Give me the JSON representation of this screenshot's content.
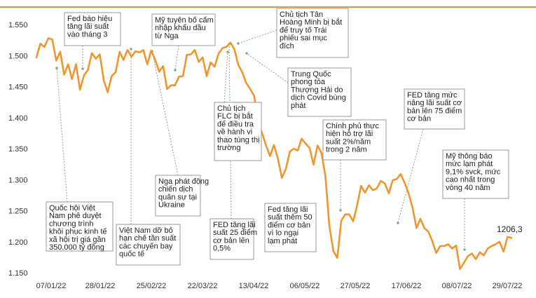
{
  "chart_data": {
    "type": "line",
    "title": "",
    "xlabel": "",
    "ylabel": "",
    "ylim": [
      1150,
      1550
    ],
    "y_ticks": [
      "1.150",
      "1.200",
      "1.250",
      "1.300",
      "1.350",
      "1.400",
      "1.450",
      "1.500",
      "1.550"
    ],
    "x_ticks": [
      "07/01/22",
      "28/01/22",
      "25/02/22",
      "22/03/22",
      "13/04/22",
      "06/05/22",
      "27/05/22",
      "17/06/22",
      "08/07/22",
      "29/07/22"
    ],
    "grid": false,
    "accent_color": "#f0962e",
    "top_rule_color": "#f0962e",
    "last_value_label": "1206,3",
    "series": [
      {
        "values": [
          1497,
          1519,
          1514,
          1528,
          1526,
          1492,
          1506,
          1469,
          1486,
          1462,
          1486,
          1445,
          1468,
          1477,
          1504,
          1495,
          1502,
          1460,
          1441,
          1467,
          1473,
          1506,
          1493,
          1509,
          1498,
          1507,
          1505,
          1509,
          1486,
          1508,
          1493,
          1474,
          1483,
          1446,
          1452,
          1452,
          1466,
          1467,
          1501,
          1502,
          1509,
          1490,
          1497,
          1467,
          1489,
          1482,
          1503,
          1512,
          1514,
          1521,
          1510,
          1485,
          1473,
          1456,
          1446,
          1435,
          1391,
          1375,
          1355,
          1338,
          1356,
          1334,
          1303,
          1317,
          1345,
          1350,
          1347,
          1366,
          1358,
          1351,
          1324,
          1355,
          1343,
          1306,
          1225,
          1185,
          1174,
          1234,
          1244,
          1244,
          1233,
          1258,
          1290,
          1279,
          1291,
          1283,
          1286,
          1298,
          1294,
          1278,
          1299,
          1301,
          1309,
          1295,
          1278,
          1255,
          1222,
          1237,
          1222,
          1216,
          1201,
          1182,
          1193,
          1193,
          1196,
          1189,
          1194,
          1156,
          1166,
          1177,
          1181,
          1172,
          1183,
          1178,
          1189,
          1193,
          1196,
          1200,
          1184,
          1208,
          1206
        ]
      }
    ],
    "annotations": [
      {
        "lines": [
          "Quốc hội Việt",
          "Nam phê duyệt",
          "chương trình",
          "khôi phục kinh tế",
          "xã hội trị giá gần",
          "350.000 tỷ đồng"
        ]
      },
      {
        "lines": [
          "Fed báo hiệu",
          "tăng lãi suất",
          "vào tháng 3"
        ]
      },
      {
        "lines": [
          "Việt Nam dỡ bỏ",
          "hạn chế tần suất",
          "các chuyến bay",
          "quốc tế"
        ]
      },
      {
        "lines": [
          "Mỹ tuyên bố cấm",
          "nhập khẩu dầu",
          "từ Nga"
        ]
      },
      {
        "lines": [
          "Nga phát động",
          "chiến dịch",
          "quân sự tại",
          "Ukraine"
        ]
      },
      {
        "lines": [
          "FED tăng lãi",
          "suất 25 điểm",
          "cơ bản lên",
          "0,5%"
        ]
      },
      {
        "lines": [
          "Chủ tịch",
          "FLC bị bắt",
          "để điều tra",
          "về hành vi",
          "thao túng thị",
          "trường"
        ]
      },
      {
        "lines": [
          "Chủ tịch Tân",
          "Hoàng Minh bị bắt",
          "để truy tố Trái",
          "phiếu sai mục",
          "đích"
        ]
      },
      {
        "lines": [
          "Trung Quốc",
          "phong tỏa",
          "Thượng Hải do",
          "dịch Covid bùng",
          "phát"
        ]
      },
      {
        "lines": [
          "Fed tăng lãi",
          "suất thêm 50",
          "điểm cơ bản",
          "vì lo ngại",
          "lạm phát"
        ]
      },
      {
        "lines": [
          "Chính phủ thực",
          "hiện hỗ trợ lãi",
          "suất 2%/năm",
          "trong 2 năm"
        ]
      },
      {
        "lines": [
          "FED tăng mức",
          "nâng lãi suất cơ",
          "bản lên 75 điểm",
          "cơ bản"
        ]
      },
      {
        "lines": [
          "Mỹ thông báo",
          "mức lạm phát",
          "9,1% svck, mức",
          "cao nhất trong",
          "vòng 40 năm"
        ]
      }
    ]
  }
}
